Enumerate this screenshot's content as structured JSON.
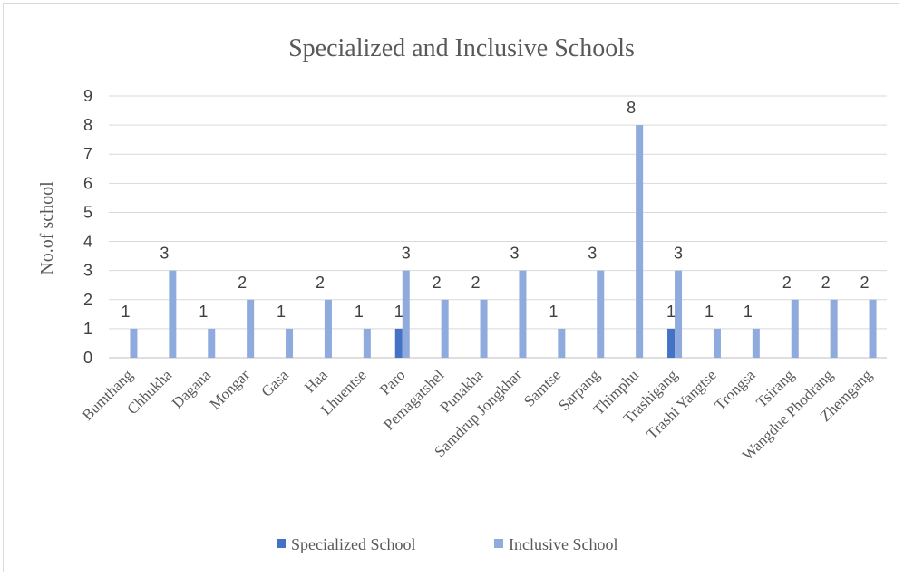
{
  "chart_data": {
    "type": "bar",
    "title": "Specialized and Inclusive Schools",
    "xlabel": "",
    "ylabel": "No.of school",
    "ylim": [
      0,
      9
    ],
    "yticks": [
      "0",
      "1",
      "2",
      "3",
      "4",
      "5",
      "6",
      "7",
      "8",
      "9"
    ],
    "grid": true,
    "legend_position": "bottom",
    "categories": [
      "Bumthang",
      "Chhukha",
      "Dagana",
      "Mongar",
      "Gasa",
      "Haa",
      "Lhuentse",
      "Paro",
      "Pemagatshel",
      "Punakha",
      "Samdrup Jongkhar",
      "Samtse",
      "Sarpang",
      "Thimphu",
      "Trashigang",
      "Trashi Yangtse",
      "Trongsa",
      "Tsirang",
      "Wangdue Phodrang",
      "Zhemgang"
    ],
    "series": [
      {
        "name": "Specialized School",
        "color": "#4472c4",
        "values": [
          null,
          null,
          null,
          null,
          null,
          null,
          null,
          1,
          null,
          null,
          null,
          null,
          null,
          null,
          1,
          null,
          null,
          null,
          null,
          null
        ]
      },
      {
        "name": "Inclusive School",
        "color": "#8faadc",
        "values": [
          1,
          3,
          1,
          2,
          1,
          2,
          1,
          3,
          2,
          2,
          3,
          1,
          3,
          8,
          3,
          1,
          1,
          2,
          2,
          2
        ]
      }
    ]
  }
}
